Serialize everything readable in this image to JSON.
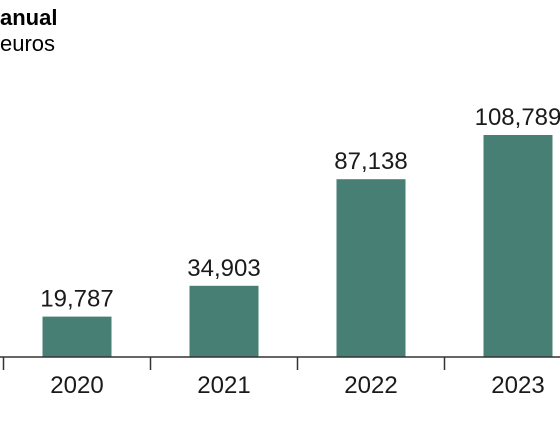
{
  "header": {
    "title": "anual",
    "subtitle": "euros"
  },
  "chart_data": {
    "type": "bar",
    "title": "anual",
    "subtitle": "euros",
    "categories": [
      "2020",
      "2021",
      "2022",
      "2023"
    ],
    "values": [
      19787,
      34903,
      87138,
      108789
    ],
    "value_labels": [
      "19,787",
      "34,903",
      "87,138",
      "108,789"
    ],
    "xlabel": "",
    "ylabel": "",
    "ylim": [
      0,
      120000
    ],
    "grid": false,
    "legend": "none",
    "colors": {
      "bar": "#477f74",
      "axis": "#333333",
      "text": "#1a1a1a"
    }
  }
}
